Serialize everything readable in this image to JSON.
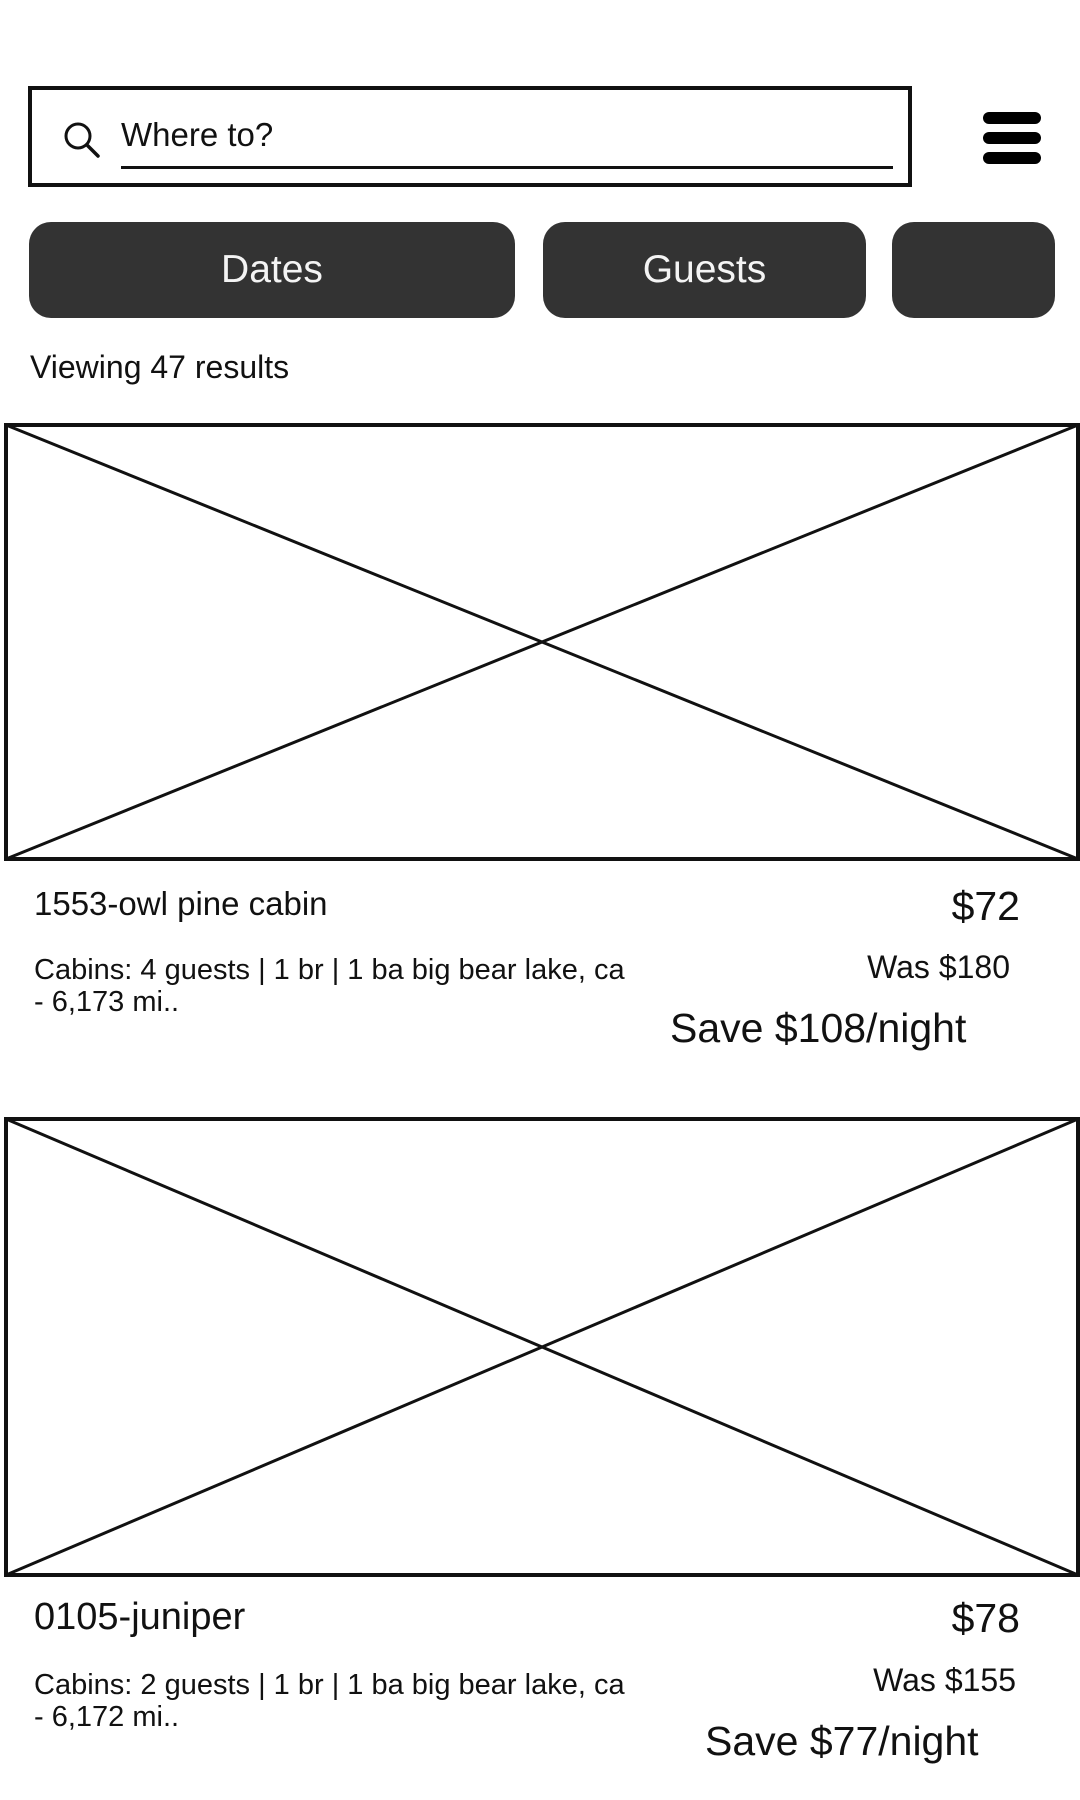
{
  "search": {
    "placeholder": "Where to?"
  },
  "filters": {
    "dates_label": "Dates",
    "guests_label": "Guests",
    "third_label": ""
  },
  "results": {
    "count_text": "Viewing 47 results"
  },
  "listings": [
    {
      "title": "1553-owl pine cabin",
      "description": "Cabins: 4 guests | 1 br | 1 ba big bear lake, ca - 6,173 mi..",
      "price": "$72",
      "was_price": "Was $180",
      "savings": "Save $108/night"
    },
    {
      "title": "0105-juniper",
      "description": "Cabins: 2 guests | 1 br | 1 ba big bear lake, ca - 6,172 mi..",
      "price": "$78",
      "was_price": "Was $155",
      "savings": "Save $77/night"
    }
  ],
  "icons": {
    "search": "search-icon",
    "menu": "hamburger-menu-icon",
    "photo": "image-placeholder-icon"
  }
}
